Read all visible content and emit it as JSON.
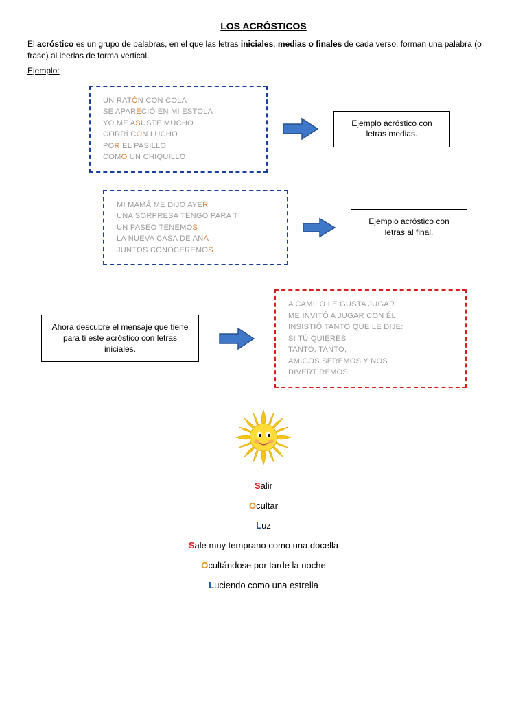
{
  "title": "LOS ACRÓSTICOS",
  "intro_pre": "El ",
  "intro_b1": "acróstico",
  "intro_mid1": " es un grupo de palabras, en el que las letras ",
  "intro_b2": "iniciales",
  "intro_comma": ", ",
  "intro_b3": "medias o finales",
  "intro_mid2": " de cada verso, forman una palabra (o frase) al leerlas de forma vertical.",
  "ejemplo": "Ejemplo:",
  "colors": {
    "blue_dash": "#1a3f9c",
    "red_dash": "#d81e1e",
    "arrow_fill": "#3f77c9",
    "arrow_stroke": "#2a5290",
    "highlight": "#d97b2e"
  },
  "box1": {
    "lines": [
      {
        "pre": "UN RAT",
        "hl": "Ó",
        "post": "N CON COLA"
      },
      {
        "pre": "SE APAR",
        "hl": "E",
        "post": "CIÓ EN MI ESTOLA"
      },
      {
        "pre": "YO ME A",
        "hl": "S",
        "post": "USTÉ MUCHO"
      },
      {
        "pre": "CORRÍ C",
        "hl": "O",
        "post": "N LUCHO"
      },
      {
        "pre": "PO",
        "hl": "R",
        " post": " EL PASILLO",
        "post": " EL PASILLO"
      },
      {
        "pre": "COM",
        "hl": "O",
        "post": " UN CHIQUILLO"
      }
    ],
    "label": "Ejemplo acróstico con letras medias."
  },
  "box2": {
    "lines": [
      {
        "pre": "MI MAMÁ ME DIJO AYE",
        "hl": "R",
        "post": ""
      },
      {
        "pre": "UNA SORPRESA TENGO PARA T",
        "hl": "I",
        "post": ""
      },
      {
        "pre": "UN PASEO TENEMO",
        "hl": "S",
        "post": ""
      },
      {
        "pre": "LA NUEVA CASA DE AN",
        "hl": "A",
        "post": ""
      },
      {
        "pre": "JUNTOS CONOCEREMO",
        "hl": "S",
        "post": ""
      }
    ],
    "label": "Ejemplo acróstico con letras al final."
  },
  "box3": {
    "prompt": "Ahora descubre el mensaje que tiene para ti este acróstico con letras iniciales.",
    "lines": [
      "A CAMILO LE GUSTA JUGAR",
      "ME INVITÓ A JUGAR CON ÉL",
      "INSISTIÓ TANTO QUE LE DIJE:",
      "SI TÚ QUIERES",
      "TANTO, TANTO,",
      "AMIGOS SEREMOS Y NOS",
      "DIVERTIREMOS"
    ]
  },
  "sol": {
    "w1_letter": "S",
    "w1_rest": "alir",
    "w2_letter": "O",
    "w2_rest": "cultar",
    "w3_letter": "L",
    "w3_rest": "uz",
    "l1_letter": "S",
    "l1_rest": "ale muy temprano como una docella",
    "l2_letter": "O",
    "l2_rest": "cultándose por tarde la noche",
    "l3_letter": "L",
    "l3_rest": "uciendo como una estrella"
  }
}
